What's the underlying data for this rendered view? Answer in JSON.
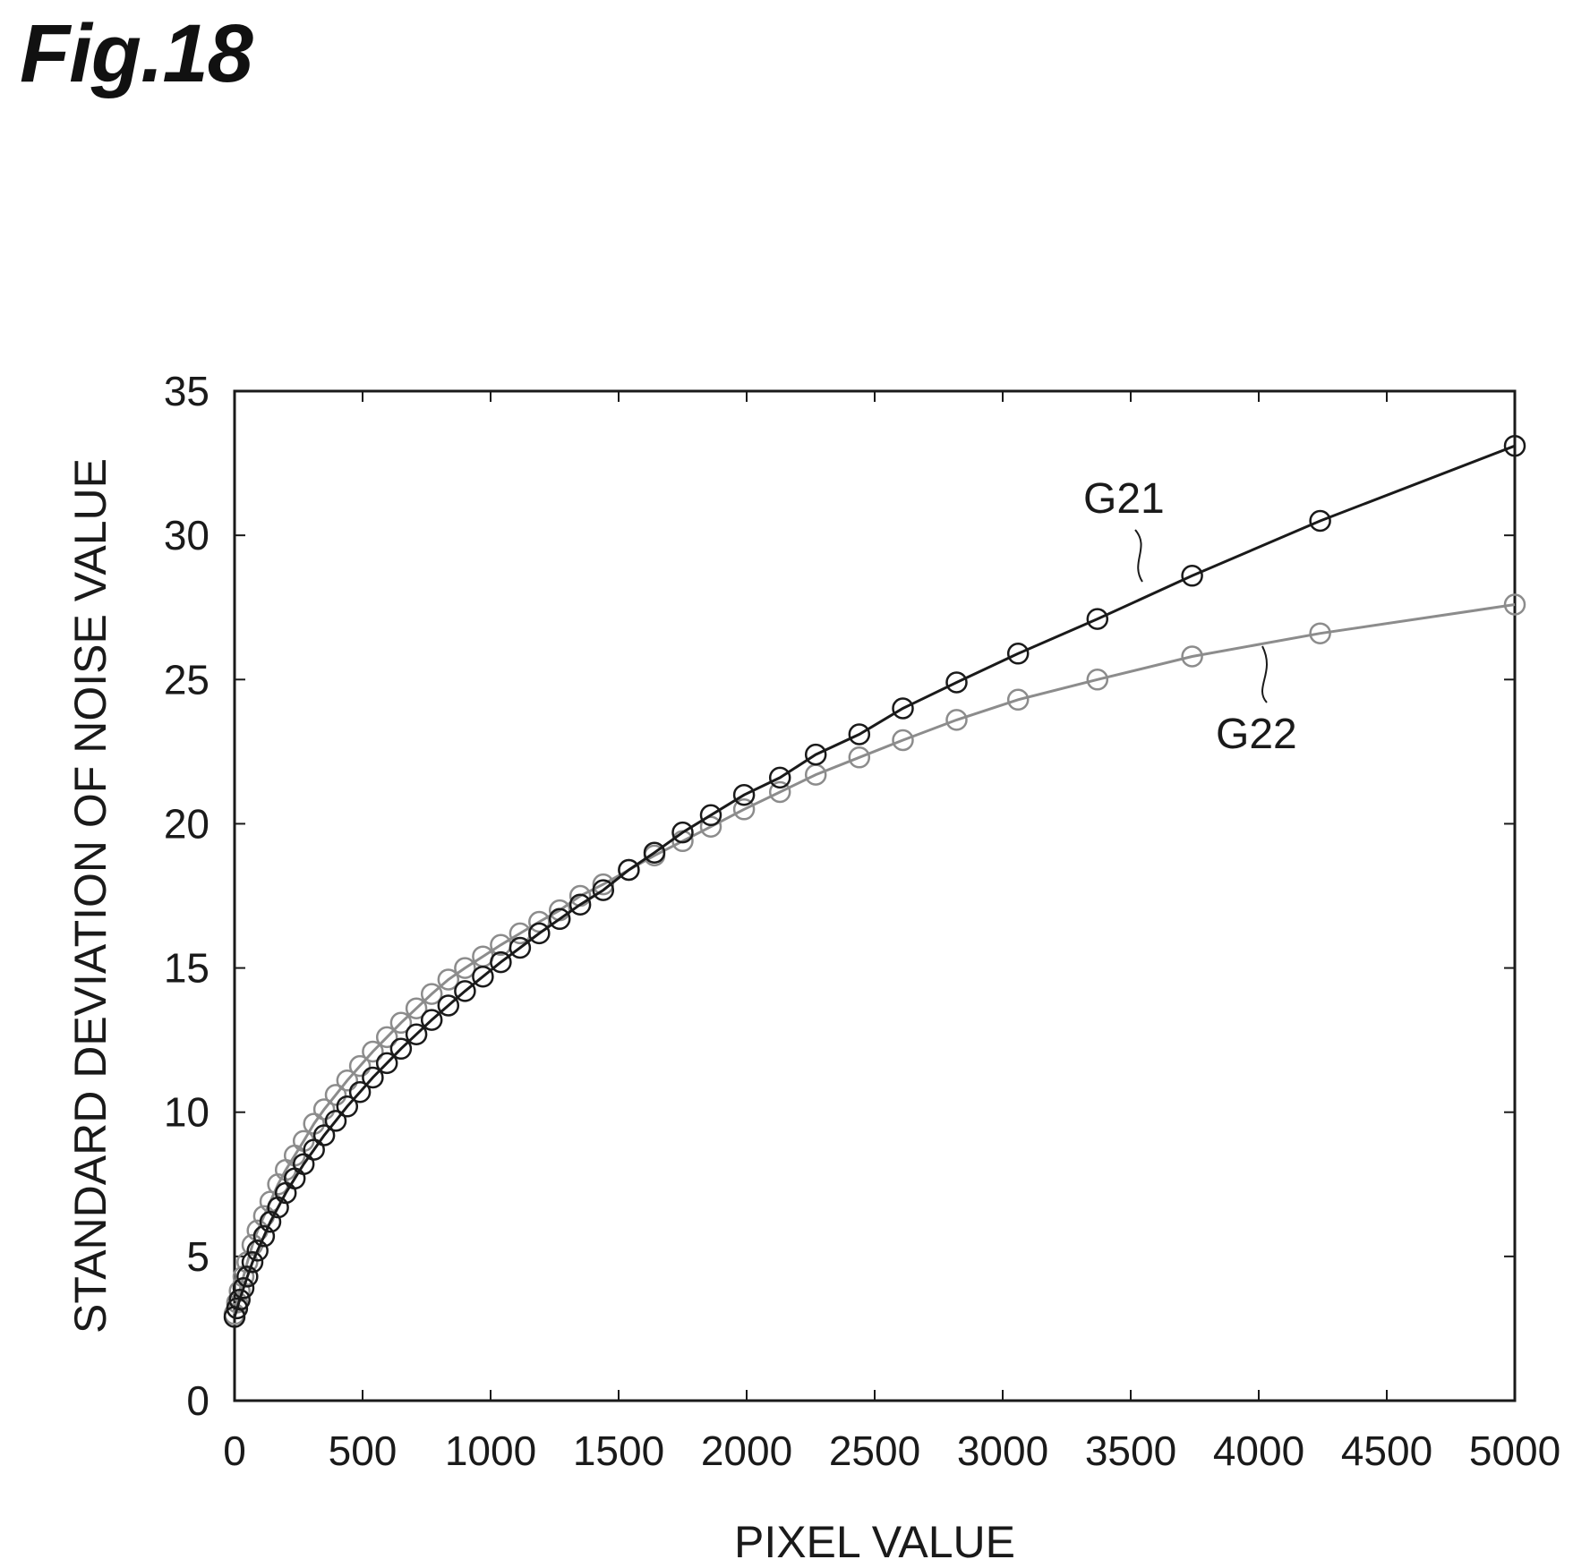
{
  "figure_label": "Fig.18",
  "chart_data": {
    "type": "line",
    "title": "",
    "xlabel": "PIXEL VALUE",
    "ylabel": "STANDARD DEVIATION OF NOISE VALUE",
    "xlim": [
      0,
      5000
    ],
    "ylim": [
      0,
      35
    ],
    "xticks": [
      0,
      500,
      1000,
      1500,
      2000,
      2500,
      3000,
      3500,
      4000,
      4500,
      5000
    ],
    "yticks": [
      0,
      5,
      10,
      15,
      20,
      25,
      30,
      35
    ],
    "xtick_labels": [
      "0",
      "500",
      "1000",
      "1500",
      "2000",
      "2500",
      "3000",
      "3500",
      "4000",
      "4500",
      "5000"
    ],
    "ytick_labels": [
      "0",
      "5",
      "10",
      "15",
      "20",
      "25",
      "30",
      "35"
    ],
    "grid": false,
    "legend": "none",
    "series": [
      {
        "name": "G21",
        "color": "#1a1a1a",
        "marker": "open-circle",
        "x": [
          0,
          10,
          20,
          35,
          50,
          70,
          90,
          115,
          140,
          170,
          200,
          235,
          270,
          310,
          350,
          395,
          440,
          490,
          540,
          595,
          650,
          710,
          770,
          835,
          900,
          970,
          1040,
          1115,
          1190,
          1270,
          1350,
          1440,
          1540,
          1640,
          1750,
          1860,
          1990,
          2130,
          2270,
          2440,
          2610,
          2820,
          3060,
          3370,
          3740,
          4240,
          5000
        ],
        "y": [
          2.9,
          3.2,
          3.5,
          3.9,
          4.3,
          4.8,
          5.2,
          5.7,
          6.2,
          6.7,
          7.2,
          7.7,
          8.2,
          8.7,
          9.2,
          9.7,
          10.2,
          10.7,
          11.2,
          11.7,
          12.2,
          12.7,
          13.2,
          13.7,
          14.2,
          14.7,
          15.2,
          15.7,
          16.2,
          16.7,
          17.2,
          17.7,
          18.4,
          19.0,
          19.7,
          20.3,
          21.0,
          21.6,
          22.4,
          23.1,
          24.0,
          24.9,
          25.9,
          27.1,
          28.6,
          30.5,
          33.1
        ]
      },
      {
        "name": "G22",
        "color": "#8c8c8c",
        "marker": "open-circle",
        "x": [
          0,
          10,
          20,
          35,
          50,
          70,
          90,
          115,
          140,
          170,
          200,
          235,
          270,
          310,
          350,
          395,
          440,
          490,
          540,
          595,
          650,
          710,
          770,
          835,
          900,
          970,
          1040,
          1115,
          1190,
          1270,
          1350,
          1440,
          1540,
          1640,
          1750,
          1860,
          1990,
          2130,
          2270,
          2440,
          2610,
          2820,
          3060,
          3370,
          3740,
          4240,
          5000
        ],
        "y": [
          3.0,
          3.4,
          3.8,
          4.3,
          4.8,
          5.4,
          5.9,
          6.4,
          6.9,
          7.5,
          8.0,
          8.5,
          9.0,
          9.6,
          10.1,
          10.6,
          11.1,
          11.6,
          12.1,
          12.6,
          13.1,
          13.6,
          14.1,
          14.6,
          15.0,
          15.4,
          15.8,
          16.2,
          16.6,
          17.0,
          17.5,
          17.9,
          18.4,
          18.9,
          19.4,
          19.9,
          20.5,
          21.1,
          21.7,
          22.3,
          22.9,
          23.6,
          24.3,
          25.0,
          25.8,
          26.6,
          27.6
        ]
      }
    ],
    "annotations": [
      {
        "text": "G21",
        "series": "G21"
      },
      {
        "text": "G22",
        "series": "G22"
      }
    ]
  }
}
